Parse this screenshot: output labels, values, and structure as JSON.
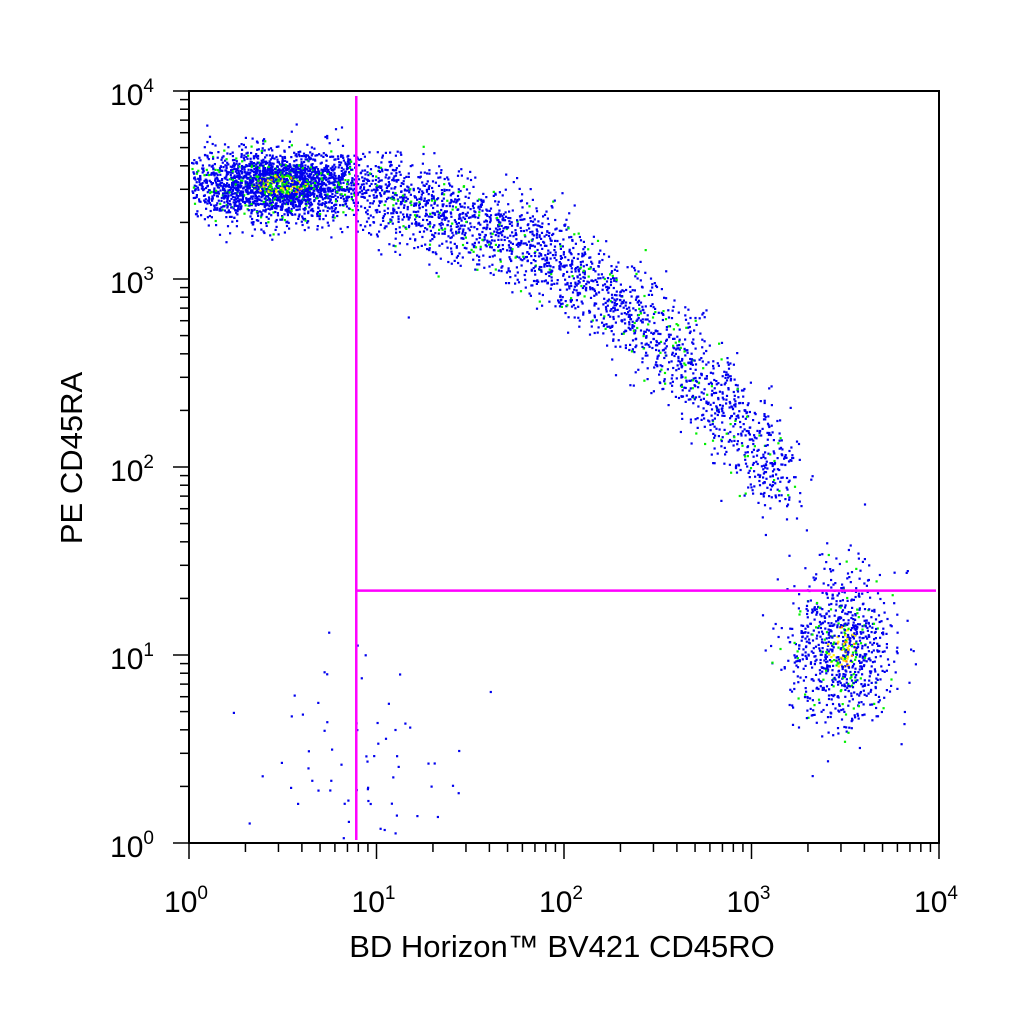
{
  "chart_data": {
    "type": "scatter",
    "title": "",
    "xlabel": "BD Horizon™ BV421 CD45RO",
    "ylabel": "PE  CD45RA",
    "x_scale": "log",
    "y_scale": "log",
    "xlim": [
      1,
      10000
    ],
    "ylim": [
      1,
      10000
    ],
    "grid": false,
    "legend": "none",
    "x_ticks": [
      {
        "base": "10",
        "exp": "0",
        "value": 1
      },
      {
        "base": "10",
        "exp": "1",
        "value": 10
      },
      {
        "base": "10",
        "exp": "2",
        "value": 100
      },
      {
        "base": "10",
        "exp": "3",
        "value": 1000
      },
      {
        "base": "10",
        "exp": "4",
        "value": 10000
      }
    ],
    "y_ticks": [
      {
        "base": "10",
        "exp": "0",
        "value": 1
      },
      {
        "base": "10",
        "exp": "1",
        "value": 10
      },
      {
        "base": "10",
        "exp": "2",
        "value": 100
      },
      {
        "base": "10",
        "exp": "3",
        "value": 1000
      },
      {
        "base": "10",
        "exp": "4",
        "value": 10000
      }
    ],
    "quadrant_gates": {
      "x_threshold": 7.8,
      "y_threshold": 22,
      "color": "#ff00ff"
    },
    "point_colors": {
      "low_density": "#0000ee",
      "medium_density": "#00ee00",
      "high_density": "#ffee00",
      "peak_density": "#ff8800"
    },
    "populations": [
      {
        "region": "upper-left",
        "x_center": 3,
        "y_center": 3200,
        "x_spread_decades": 0.25,
        "y_spread_decades": 0.09,
        "density": "high",
        "count": 2600
      },
      {
        "region": "diagonal-arc",
        "x_from": 10,
        "y_from": 2500,
        "x_to": 1500,
        "y_to": 80,
        "spread_decades": 0.12,
        "density": "medium",
        "count": 2200
      },
      {
        "region": "lower-right",
        "x_center": 3000,
        "y_center": 11,
        "x_spread_decades": 0.14,
        "y_spread_decades": 0.2,
        "density": "high",
        "count": 900
      },
      {
        "region": "lower-left",
        "x_center": 8,
        "y_center": 3,
        "x_spread_decades": 0.3,
        "y_spread_decades": 0.3,
        "density": "low",
        "count": 70
      }
    ]
  }
}
